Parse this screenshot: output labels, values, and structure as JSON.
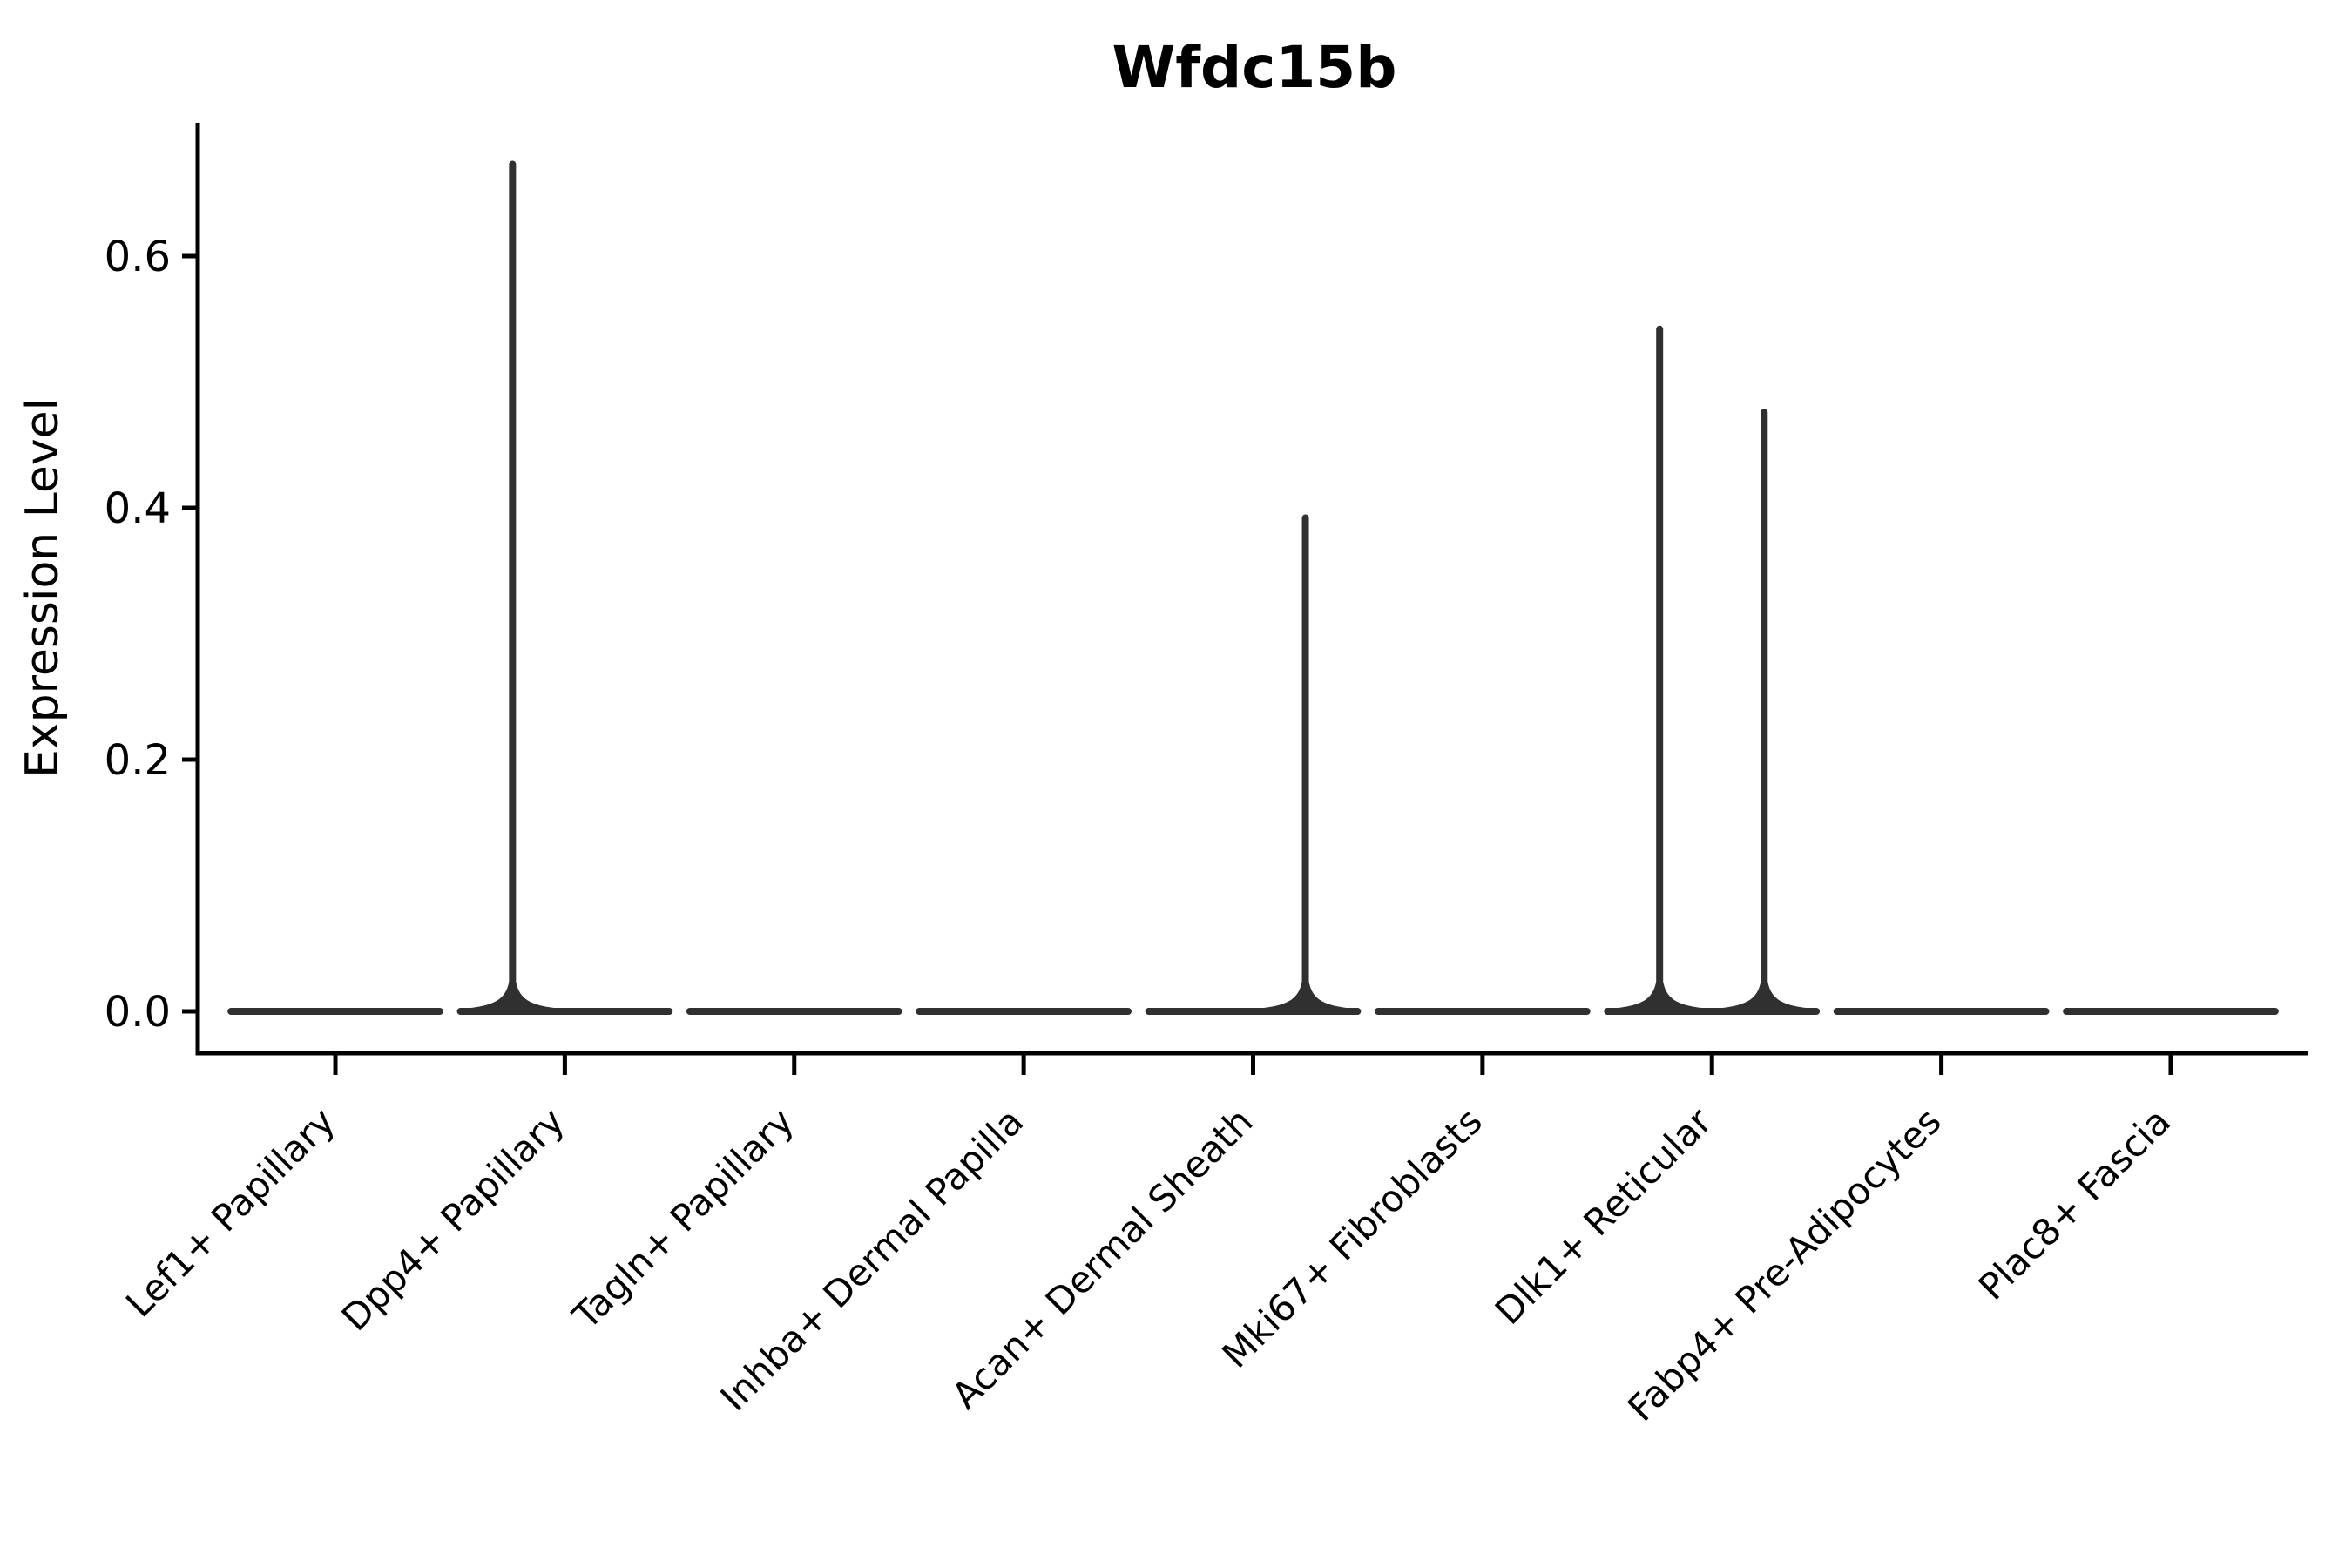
{
  "chart_data": {
    "type": "violin",
    "title": "Wfdc15b",
    "xlabel": "",
    "ylabel": "Expression Level",
    "legend": "none",
    "grid": false,
    "background": "#ffffff",
    "colors": {
      "violin_stroke": "#303030",
      "axis": "#000000",
      "text": "#000000"
    },
    "y_axis": {
      "ticks": [
        "0.0",
        "0.2",
        "0.4",
        "0.6"
      ],
      "tick_values": [
        0.0,
        0.2,
        0.4,
        0.6
      ],
      "ylim": [
        -0.033,
        0.706
      ]
    },
    "x_axis": {
      "tick_rotation": 45,
      "categories": [
        "Lef1+ Papillary",
        "Dpp4+ Papillary",
        "Tagln+ Papillary",
        "Inhba+ Dermal Papilla",
        "Acan+ Dermal Sheath",
        "Mki67+ Fibroblasts",
        "Dlk1+ Reticular",
        "Fabp4+ Pre-Adipocytes",
        "Plac8+ Fascia"
      ]
    },
    "violins": [
      {
        "category": "Lef1+ Papillary",
        "baseline_value": 0.0,
        "spikes": []
      },
      {
        "category": "Dpp4+ Papillary",
        "baseline_value": 0.0,
        "spikes": [
          {
            "offset": -0.228,
            "max_value": 0.673
          }
        ]
      },
      {
        "category": "Tagln+ Papillary",
        "baseline_value": 0.0,
        "spikes": []
      },
      {
        "category": "Inhba+ Dermal Papilla",
        "baseline_value": 0.0,
        "spikes": []
      },
      {
        "category": "Acan+ Dermal Sheath",
        "baseline_value": 0.0,
        "spikes": [
          {
            "offset": 0.228,
            "max_value": 0.392
          }
        ]
      },
      {
        "category": "Mki67+ Fibroblasts",
        "baseline_value": 0.0,
        "spikes": []
      },
      {
        "category": "Dlk1+ Reticular",
        "baseline_value": 0.0,
        "spikes": [
          {
            "offset": -0.228,
            "max_value": 0.542
          },
          {
            "offset": 0.228,
            "max_value": 0.476
          }
        ]
      },
      {
        "category": "Fabp4+ Pre-Adipocytes",
        "baseline_value": 0.0,
        "spikes": []
      },
      {
        "category": "Plac8+ Fascia",
        "baseline_value": 0.0,
        "spikes": []
      }
    ]
  }
}
